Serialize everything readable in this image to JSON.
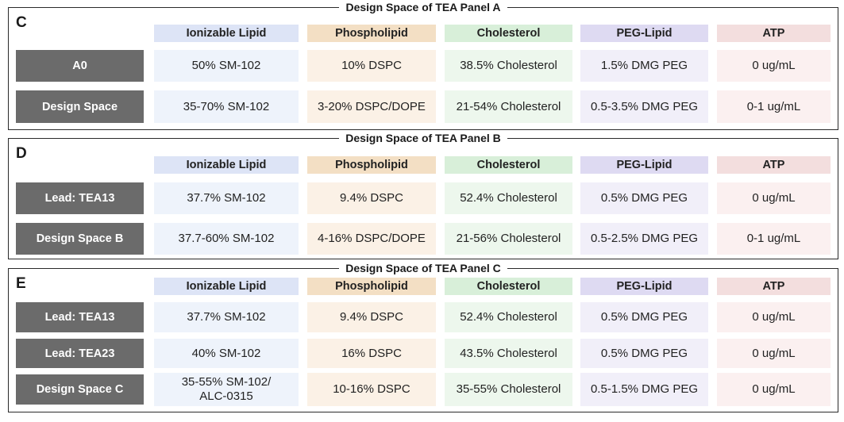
{
  "columns": [
    {
      "label": "Ionizable Lipid",
      "header_color": "#dde4f6",
      "cell_color": "#eef3fb"
    },
    {
      "label": "Phospholipid",
      "header_color": "#f3dfc4",
      "cell_color": "#fbf1e6"
    },
    {
      "label": "Cholesterol",
      "header_color": "#d8efd9",
      "cell_color": "#edf7ed"
    },
    {
      "label": "PEG-Lipid",
      "header_color": "#dedaf2",
      "cell_color": "#f1eff9"
    },
    {
      "label": "ATP",
      "header_color": "#f3dede",
      "cell_color": "#fbf0f0"
    }
  ],
  "panels": [
    {
      "letter": "C",
      "title": "Design Space of TEA Panel A",
      "rows": [
        {
          "label": "A0",
          "cells": [
            "50% SM-102",
            "10% DSPC",
            "38.5% Cholesterol",
            "1.5% DMG PEG",
            "0 ug/mL"
          ]
        },
        {
          "label": "Design Space",
          "cells": [
            "35-70% SM-102",
            "3-20% DSPC/DOPE",
            "21-54% Cholesterol",
            "0.5-3.5% DMG PEG",
            "0-1 ug/mL"
          ]
        }
      ]
    },
    {
      "letter": "D",
      "title": "Design Space of TEA Panel B",
      "rows": [
        {
          "label": "Lead: TEA13",
          "cells": [
            "37.7% SM-102",
            "9.4% DSPC",
            "52.4% Cholesterol",
            "0.5% DMG PEG",
            "0 ug/mL"
          ]
        },
        {
          "label": "Design Space B",
          "cells": [
            "37.7-60% SM-102",
            "4-16% DSPC/DOPE",
            "21-56% Cholesterol",
            "0.5-2.5% DMG PEG",
            "0-1 ug/mL"
          ]
        }
      ]
    },
    {
      "letter": "E",
      "title": "Design Space of TEA Panel C",
      "rows": [
        {
          "label": "Lead: TEA13",
          "cells": [
            "37.7% SM-102",
            "9.4% DSPC",
            "52.4% Cholesterol",
            "0.5% DMG PEG",
            "0 ug/mL"
          ]
        },
        {
          "label": "Lead: TEA23",
          "cells": [
            "40% SM-102",
            "16% DSPC",
            "43.5% Cholesterol",
            "0.5% DMG PEG",
            "0 ug/mL"
          ]
        },
        {
          "label": "Design Space C",
          "cells": [
            "35-55% SM-102/\nALC-0315",
            "10-16% DSPC",
            "35-55% Cholesterol",
            "0.5-1.5% DMG PEG",
            "0 ug/mL"
          ]
        }
      ]
    }
  ]
}
